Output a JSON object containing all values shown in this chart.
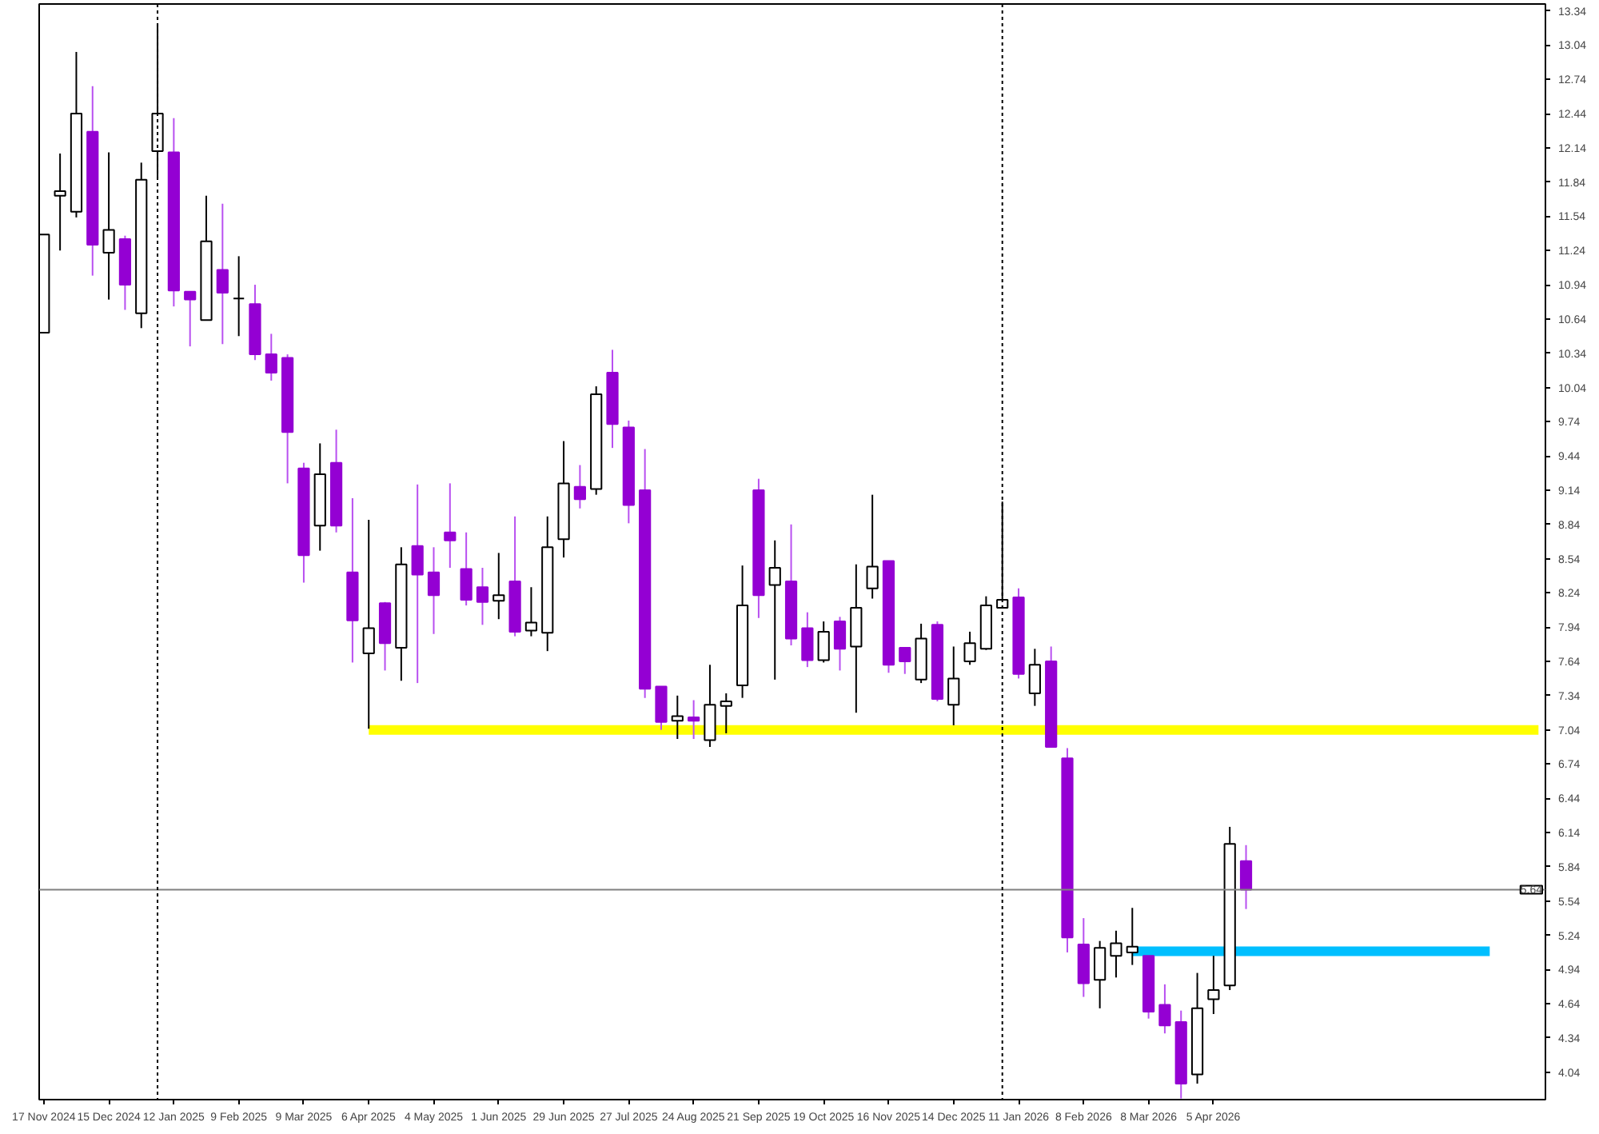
{
  "chart_data": {
    "type": "candlestick",
    "x": [
      "2024-11-17",
      "2024-11-24",
      "2024-12-01",
      "2024-12-08",
      "2024-12-15",
      "2024-12-22",
      "2024-12-29",
      "2025-01-05",
      "2025-01-12",
      "2025-01-19",
      "2025-01-26",
      "2025-02-02",
      "2025-02-09",
      "2025-02-16",
      "2025-02-23",
      "2025-03-02",
      "2025-03-09",
      "2025-03-16",
      "2025-03-23",
      "2025-03-30",
      "2025-04-06",
      "2025-04-13",
      "2025-04-20",
      "2025-04-27",
      "2025-05-04",
      "2025-05-11",
      "2025-05-18",
      "2025-05-25",
      "2025-06-01",
      "2025-06-08",
      "2025-06-15",
      "2025-06-22",
      "2025-06-29",
      "2025-07-06",
      "2025-07-13",
      "2025-07-20",
      "2025-07-27",
      "2025-08-03",
      "2025-08-10",
      "2025-08-17",
      "2025-08-24",
      "2025-08-31",
      "2025-09-07",
      "2025-09-14",
      "2025-09-21",
      "2025-09-28",
      "2025-10-05",
      "2025-10-12",
      "2025-10-19",
      "2025-10-26",
      "2025-11-02",
      "2025-11-09",
      "2025-11-16",
      "2025-11-23",
      "2025-11-30",
      "2025-12-07",
      "2025-12-14",
      "2025-12-21",
      "2025-12-28",
      "2026-01-04",
      "2026-01-11",
      "2026-01-18",
      "2026-01-25",
      "2026-02-01",
      "2026-02-08",
      "2026-02-15",
      "2026-02-22",
      "2026-03-01",
      "2026-03-08",
      "2026-03-15",
      "2026-03-22",
      "2026-03-29",
      "2026-04-05",
      "2026-04-12",
      "2026-04-19"
    ],
    "ohlc": [
      [
        10.52,
        11.38,
        10.52,
        11.38
      ],
      [
        11.72,
        12.09,
        11.24,
        11.76
      ],
      [
        11.58,
        12.98,
        11.53,
        12.44
      ],
      [
        12.28,
        12.68,
        11.02,
        11.29
      ],
      [
        11.22,
        12.1,
        10.81,
        11.42
      ],
      [
        11.34,
        11.37,
        10.72,
        10.94
      ],
      [
        10.69,
        12.01,
        10.56,
        11.86
      ],
      [
        12.11,
        13.23,
        11.87,
        12.44
      ],
      [
        12.1,
        12.4,
        10.75,
        10.89
      ],
      [
        10.88,
        10.88,
        10.4,
        10.81
      ],
      [
        10.63,
        11.72,
        10.63,
        11.32
      ],
      [
        11.07,
        11.65,
        10.42,
        10.87
      ],
      [
        10.82,
        11.19,
        10.49,
        10.82
      ],
      [
        10.77,
        10.94,
        10.28,
        10.33
      ],
      [
        10.33,
        10.51,
        10.1,
        10.17
      ],
      [
        10.3,
        10.33,
        9.2,
        9.65
      ],
      [
        9.33,
        9.38,
        8.33,
        8.57
      ],
      [
        8.83,
        9.55,
        8.61,
        9.28
      ],
      [
        9.38,
        9.67,
        8.77,
        8.83
      ],
      [
        8.42,
        9.07,
        7.63,
        8.0
      ],
      [
        7.71,
        8.88,
        7.05,
        7.93
      ],
      [
        8.15,
        8.16,
        7.56,
        7.8
      ],
      [
        7.76,
        8.64,
        7.47,
        8.49
      ],
      [
        8.65,
        9.19,
        7.45,
        8.4
      ],
      [
        8.42,
        8.64,
        7.88,
        8.22
      ],
      [
        8.77,
        9.2,
        8.46,
        8.7
      ],
      [
        8.45,
        8.77,
        8.13,
        8.18
      ],
      [
        8.29,
        8.46,
        7.96,
        8.16
      ],
      [
        8.17,
        8.59,
        8.01,
        8.22
      ],
      [
        8.34,
        8.91,
        7.86,
        7.9
      ],
      [
        7.91,
        8.29,
        7.86,
        7.98
      ],
      [
        7.89,
        8.91,
        7.73,
        8.64
      ],
      [
        8.71,
        9.57,
        8.55,
        9.2
      ],
      [
        9.17,
        9.36,
        8.98,
        9.06
      ],
      [
        9.15,
        10.05,
        9.1,
        9.98
      ],
      [
        10.17,
        10.37,
        9.51,
        9.72
      ],
      [
        9.69,
        9.75,
        8.85,
        9.01
      ],
      [
        9.14,
        9.5,
        7.32,
        7.4
      ],
      [
        7.42,
        7.42,
        7.04,
        7.11
      ],
      [
        7.12,
        7.34,
        6.96,
        7.16
      ],
      [
        7.15,
        7.3,
        6.96,
        7.12
      ],
      [
        6.95,
        7.61,
        6.89,
        7.26
      ],
      [
        7.25,
        7.36,
        7.01,
        7.29
      ],
      [
        7.43,
        8.48,
        7.32,
        8.13
      ],
      [
        9.14,
        9.24,
        8.02,
        8.22
      ],
      [
        8.31,
        8.7,
        7.48,
        8.46
      ],
      [
        8.34,
        8.84,
        7.78,
        7.84
      ],
      [
        7.93,
        8.07,
        7.59,
        7.65
      ],
      [
        7.65,
        7.99,
        7.63,
        7.9
      ],
      [
        7.99,
        8.03,
        7.56,
        7.75
      ],
      [
        7.77,
        8.49,
        7.19,
        8.11
      ],
      [
        8.28,
        9.1,
        8.19,
        8.47
      ],
      [
        8.52,
        8.52,
        7.54,
        7.61
      ],
      [
        7.76,
        7.76,
        7.53,
        7.64
      ],
      [
        7.48,
        7.97,
        7.45,
        7.84
      ],
      [
        7.96,
        7.99,
        7.29,
        7.31
      ],
      [
        7.26,
        7.77,
        7.08,
        7.49
      ],
      [
        7.64,
        7.9,
        7.61,
        7.8
      ],
      [
        7.75,
        8.21,
        7.74,
        8.13
      ],
      [
        8.11,
        9.04,
        8.11,
        8.18
      ],
      [
        8.2,
        8.28,
        7.49,
        7.53
      ],
      [
        7.36,
        7.75,
        7.25,
        7.61
      ],
      [
        7.64,
        7.77,
        6.89,
        6.89
      ],
      [
        6.79,
        6.88,
        5.09,
        5.22
      ],
      [
        5.16,
        5.39,
        4.7,
        4.82
      ],
      [
        4.85,
        5.19,
        4.6,
        5.13
      ],
      [
        5.06,
        5.28,
        4.87,
        5.17
      ],
      [
        5.09,
        5.48,
        4.98,
        5.14
      ],
      [
        5.06,
        5.06,
        4.51,
        4.57
      ],
      [
        4.63,
        4.81,
        4.38,
        4.45
      ],
      [
        4.48,
        4.58,
        3.81,
        3.94
      ],
      [
        4.02,
        4.91,
        3.94,
        4.6
      ],
      [
        4.68,
        5.06,
        4.55,
        4.76
      ],
      [
        4.8,
        6.19,
        4.76,
        6.04
      ],
      [
        5.89,
        6.03,
        5.47,
        5.64
      ]
    ],
    "colors": [
      "#ffffff",
      "#ffffff",
      "#ffffff",
      "#9400d3",
      "#ffffff",
      "#9400d3",
      "#ffffff",
      "#ffffff",
      "#9400d3",
      "#9400d3",
      "#ffffff",
      "#9400d3",
      "#000000",
      "#9400d3",
      "#9400d3",
      "#9400d3",
      "#9400d3",
      "#ffffff",
      "#9400d3",
      "#9400d3",
      "#ffffff",
      "#9400d3",
      "#ffffff",
      "#9400d3",
      "#9400d3",
      "#9400d3",
      "#9400d3",
      "#9400d3",
      "#ffffff",
      "#9400d3",
      "#ffffff",
      "#ffffff",
      "#ffffff",
      "#9400d3",
      "#ffffff",
      "#9400d3",
      "#9400d3",
      "#9400d3",
      "#9400d3",
      "#ffffff",
      "#9400d3",
      "#ffffff",
      "#ffffff",
      "#ffffff",
      "#9400d3",
      "#ffffff",
      "#9400d3",
      "#9400d3",
      "#ffffff",
      "#9400d3",
      "#ffffff",
      "#ffffff",
      "#9400d3",
      "#9400d3",
      "#ffffff",
      "#9400d3",
      "#ffffff",
      "#ffffff",
      "#ffffff",
      "#ffffff",
      "#9400d3",
      "#ffffff",
      "#9400d3",
      "#9400d3",
      "#9400d3",
      "#ffffff",
      "#ffffff",
      "#ffffff",
      "#9400d3",
      "#9400d3",
      "#9400d3",
      "#ffffff",
      "#ffffff",
      "#ffffff",
      "#9400d3"
    ],
    "series": [
      {
        "type": "line",
        "color": "#ffff00",
        "x": [
          "2025-04-06",
          "2026-08-23"
        ],
        "values": [
          7.04,
          7.04
        ]
      },
      {
        "type": "line",
        "color": "#00bfff",
        "x": [
          "2026-03-01",
          "2026-08-02"
        ],
        "values": [
          5.1,
          5.1
        ]
      }
    ],
    "ref_lines": [
      {
        "axis": "y",
        "value": 5.64,
        "label": "5.64",
        "color": "#808080",
        "line_style": "solid"
      },
      {
        "axis": "x",
        "value": "2025-01-05",
        "color": "#000000",
        "line_style": "dotted"
      },
      {
        "axis": "x",
        "value": "2026-01-04",
        "color": "#000000",
        "line_style": "dotted"
      }
    ],
    "xlim": [
      "2024-11-15",
      "2026-08-26"
    ],
    "xticks": [
      {
        "value": "2024-11-17",
        "label": "17 Nov 2024"
      },
      {
        "value": "2024-12-15",
        "label": "15 Dec 2024"
      },
      {
        "value": "2025-01-12",
        "label": "12 Jan 2025"
      },
      {
        "value": "2025-02-09",
        "label": "9 Feb 2025"
      },
      {
        "value": "2025-03-09",
        "label": "9 Mar 2025"
      },
      {
        "value": "2025-04-06",
        "label": "6 Apr 2025"
      },
      {
        "value": "2025-05-04",
        "label": "4 May 2025"
      },
      {
        "value": "2025-06-01",
        "label": "1 Jun 2025"
      },
      {
        "value": "2025-06-29",
        "label": "29 Jun 2025"
      },
      {
        "value": "2025-07-27",
        "label": "27 Jul 2025"
      },
      {
        "value": "2025-08-24",
        "label": "24 Aug 2025"
      },
      {
        "value": "2025-09-21",
        "label": "21 Sep 2025"
      },
      {
        "value": "2025-10-19",
        "label": "19 Oct 2025"
      },
      {
        "value": "2025-11-16",
        "label": "16 Nov 2025"
      },
      {
        "value": "2025-12-14",
        "label": "14 Dec 2025"
      },
      {
        "value": "2026-01-11",
        "label": "11 Jan 2026"
      },
      {
        "value": "2026-02-08",
        "label": "8 Feb 2026"
      },
      {
        "value": "2026-03-08",
        "label": "8 Mar 2026"
      },
      {
        "value": "2026-04-05",
        "label": "5 Apr 2026"
      }
    ],
    "ylim": [
      3.8,
      13.4
    ],
    "yticks": [
      4.04,
      4.34,
      4.64,
      4.94,
      5.24,
      5.54,
      5.84,
      6.14,
      6.44,
      6.74,
      7.04,
      7.34,
      7.64,
      7.94,
      8.24,
      8.54,
      8.84,
      9.14,
      9.44,
      9.74,
      10.04,
      10.34,
      10.64,
      10.94,
      11.24,
      11.54,
      11.84,
      12.14,
      12.44,
      12.74,
      13.04,
      13.34
    ],
    "grid": false
  }
}
